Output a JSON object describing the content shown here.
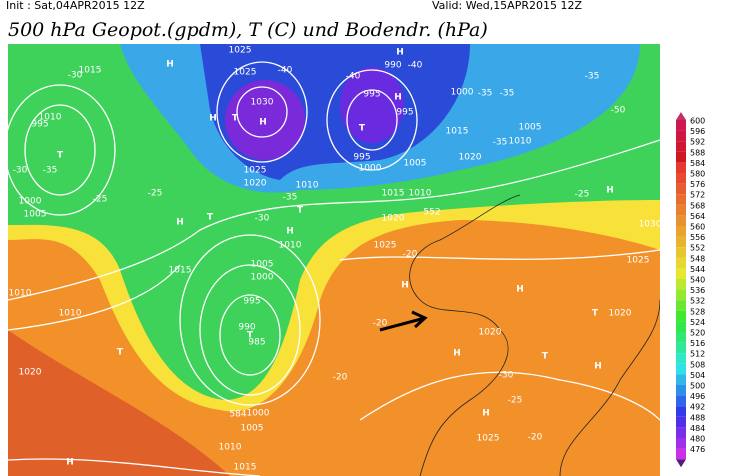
{
  "header": {
    "init": "Init : Sat,04APR2015 12Z",
    "valid": "Valid: Wed,15APR2015 12Z",
    "title": "500 hPa Geopot.(gpdm), T (C) und Bodendr. (hPa)"
  },
  "legend": {
    "labels": [
      600,
      596,
      592,
      588,
      584,
      580,
      576,
      572,
      568,
      564,
      560,
      556,
      552,
      548,
      544,
      540,
      536,
      532,
      528,
      524,
      520,
      516,
      512,
      508,
      504,
      500,
      496,
      492,
      488,
      484,
      480,
      476
    ]
  },
  "map": {
    "labels": [
      "1015",
      "-30",
      "H",
      "1025",
      "1025",
      "-40",
      "H",
      "990",
      "-40",
      "-40",
      "1030",
      "H",
      "T",
      "H",
      "995",
      "H",
      "995",
      "1000",
      "-35",
      "-35",
      "-35",
      "-50",
      "T",
      "1005",
      "1015",
      "1010",
      "-35",
      "995",
      "1020",
      "1000",
      "1005",
      "1025",
      "1020",
      "1010",
      "-35",
      "T",
      "1015",
      "1010",
      "H",
      "-25",
      "T",
      "1010",
      "995",
      "-30",
      "-35",
      "1000",
      "1005",
      "-25",
      "-25",
      "H",
      "T",
      "-30",
      "H",
      "1010",
      "1020",
      "552",
      "1030",
      "1025",
      "-20",
      "1025",
      "1015",
      "1005",
      "1000",
      "H",
      "H",
      "995",
      "1010",
      "990",
      "T",
      "985",
      "-20",
      "T",
      "1020",
      "1010",
      "1020",
      "T",
      "H",
      "T",
      "H",
      "1020",
      "-20",
      "-30",
      "-25",
      "584",
      "1000",
      "1005",
      "H",
      "1025",
      "-20",
      "1010",
      "H",
      "1015"
    ]
  }
}
